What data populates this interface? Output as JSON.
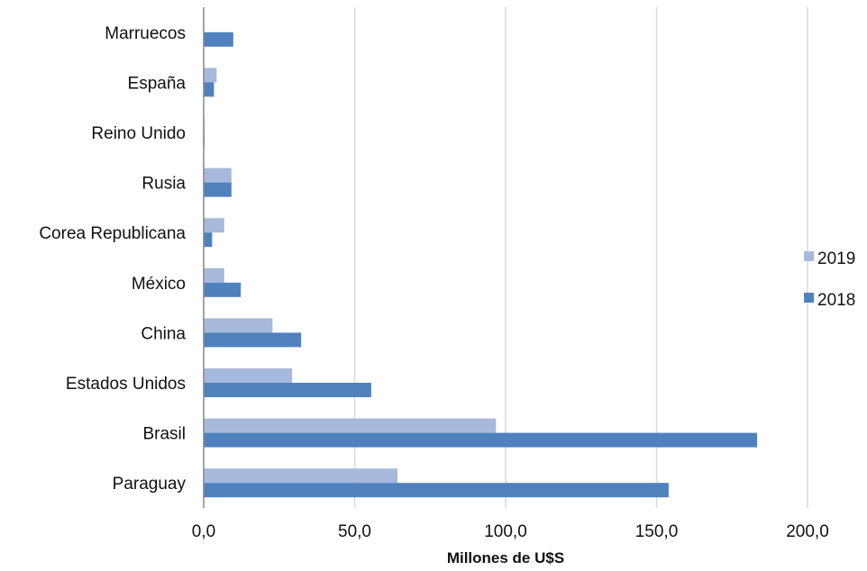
{
  "chart_data": {
    "type": "bar",
    "orientation": "horizontal",
    "categories": [
      "Paraguay",
      "Brasil",
      "Estados Unidos",
      "China",
      "México",
      "Corea Republicana",
      "Rusia",
      "Reino Unido",
      "España",
      "Marruecos"
    ],
    "series": [
      {
        "name": "2019",
        "color": "#a6b9dc",
        "values": [
          64.2,
          96.8,
          29.3,
          22.8,
          6.8,
          6.8,
          9.2,
          0.3,
          4.3,
          0.0
        ]
      },
      {
        "name": "2018",
        "color": "#4f81bd",
        "values": [
          154.0,
          183.3,
          55.5,
          32.3,
          12.3,
          2.8,
          9.2,
          0.3,
          3.4,
          9.8
        ]
      }
    ],
    "title": "",
    "xlabel": "Millones de U$S",
    "ylabel": "",
    "xlim": [
      0,
      200
    ],
    "xticks": [
      0,
      50,
      100,
      150,
      200
    ],
    "xtick_labels": [
      "0,0",
      "50,0",
      "100,0",
      "150,0",
      "200,0"
    ],
    "grid": "vertical",
    "legend_position": "right"
  }
}
